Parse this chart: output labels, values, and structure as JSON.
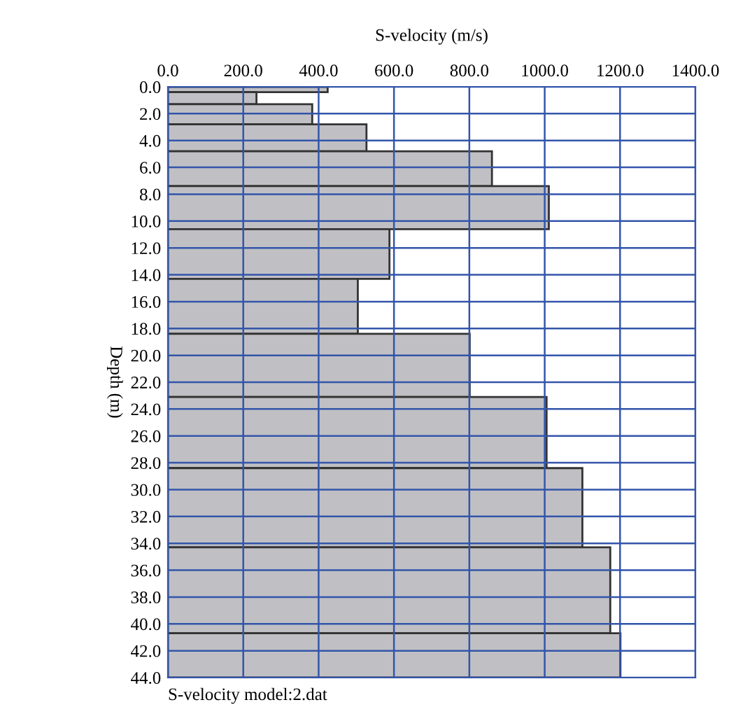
{
  "chart_data": {
    "type": "histogram",
    "orientation": "horizontal",
    "xlabel": "S-velocity (m/s)",
    "ylabel": "Depth (m)",
    "bins": [
      0,
      0.4,
      1.3,
      2.8,
      4.8,
      7.4,
      10.6,
      14.3,
      18.4,
      23.1,
      28.4,
      34.3,
      40.7,
      44
    ],
    "values": [
      424,
      235,
      383,
      527,
      860,
      1011,
      588,
      504,
      801,
      1005,
      1100,
      1174,
      1201
    ],
    "color": "#c0c0c4",
    "xlim": [
      0,
      1400
    ],
    "xticks": [
      {
        "value": 0,
        "label": "0.0"
      },
      {
        "value": 200,
        "label": "200.0"
      },
      {
        "value": 400,
        "label": "400.0"
      },
      {
        "value": 600,
        "label": "600.0"
      },
      {
        "value": 800,
        "label": "800.0"
      },
      {
        "value": 1000,
        "label": "1000.0"
      },
      {
        "value": 1200,
        "label": "1200.0"
      },
      {
        "value": 1400,
        "label": "1400.0"
      }
    ],
    "ylim": [
      44,
      0
    ],
    "yticks": [
      {
        "value": 0,
        "label": "0.0"
      },
      {
        "value": 2,
        "label": "2.0"
      },
      {
        "value": 4,
        "label": "4.0"
      },
      {
        "value": 6,
        "label": "6.0"
      },
      {
        "value": 8,
        "label": "8.0"
      },
      {
        "value": 10,
        "label": "10.0"
      },
      {
        "value": 12,
        "label": "12.0"
      },
      {
        "value": 14,
        "label": "14.0"
      },
      {
        "value": 16,
        "label": "16.0"
      },
      {
        "value": 18,
        "label": "18.0"
      },
      {
        "value": 20,
        "label": "20.0"
      },
      {
        "value": 22,
        "label": "22.0"
      },
      {
        "value": 24,
        "label": "24.0"
      },
      {
        "value": 26,
        "label": "26.0"
      },
      {
        "value": 28,
        "label": "28.0"
      },
      {
        "value": 30,
        "label": "30.0"
      },
      {
        "value": 32,
        "label": "32.0"
      },
      {
        "value": 34,
        "label": "34.0"
      },
      {
        "value": 36,
        "label": "36.0"
      },
      {
        "value": 38,
        "label": "38.0"
      },
      {
        "value": 40,
        "label": "40.0"
      },
      {
        "value": 42,
        "label": "42.0"
      },
      {
        "value": 44,
        "label": "44.0"
      }
    ],
    "grid": true,
    "annotations": [
      "S-velocity model:2.dat"
    ]
  }
}
